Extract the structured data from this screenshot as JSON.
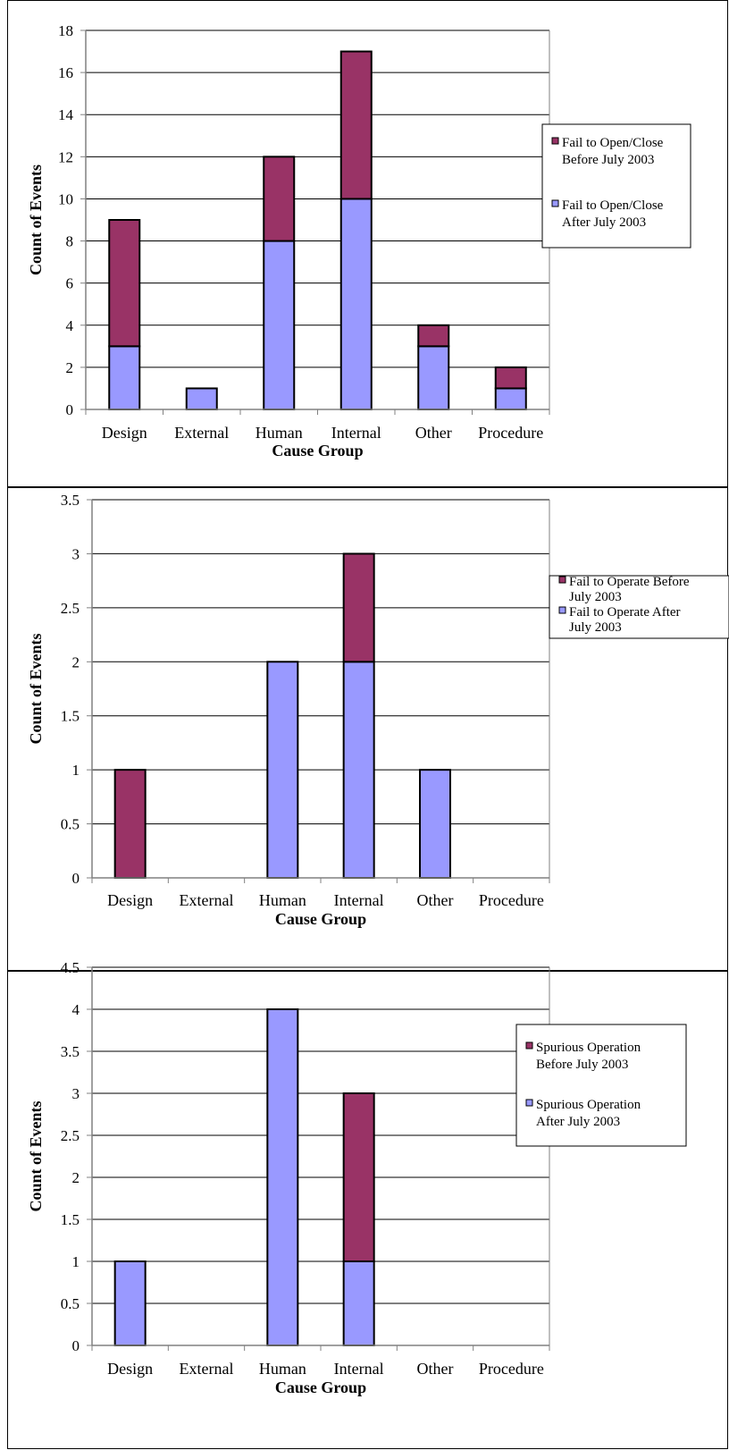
{
  "colors": {
    "before": "#993366",
    "after": "#9999ff",
    "axis": "#808080",
    "grid": "#000000"
  },
  "chart_data": [
    {
      "type": "bar",
      "stacked": true,
      "categories": [
        "Design",
        "External",
        "Human",
        "Internal",
        "Other",
        "Procedure"
      ],
      "series": [
        {
          "name": "Fail to Open/Close After July 2003",
          "color": "#9999ff",
          "values": [
            3,
            1,
            8,
            10,
            3,
            1
          ]
        },
        {
          "name": "Fail to Open/Close Before July 2003",
          "color": "#993366",
          "values": [
            6,
            0,
            4,
            7,
            1,
            1
          ]
        }
      ],
      "legend_lines": [
        [
          "Fail to Open/Close",
          "Before July 2003"
        ],
        [
          "Fail to Open/Close",
          "After July 2003"
        ]
      ],
      "xlabel": "Cause Group",
      "ylabel": "Count of Events",
      "ylim": [
        0,
        18
      ],
      "yticks": [
        "0",
        "2",
        "4",
        "6",
        "8",
        "10",
        "12",
        "14",
        "16",
        "18"
      ],
      "grid": true,
      "legend": "right"
    },
    {
      "type": "bar",
      "stacked": true,
      "categories": [
        "Design",
        "External",
        "Human",
        "Internal",
        "Other",
        "Procedure"
      ],
      "series": [
        {
          "name": "Fail to Operate After July 2003",
          "color": "#9999ff",
          "values": [
            0,
            0,
            2,
            2,
            1,
            0
          ]
        },
        {
          "name": "Fail to Operate Before July 2003",
          "color": "#993366",
          "values": [
            1,
            0,
            0,
            1,
            0,
            0
          ]
        }
      ],
      "legend_lines": [
        [
          "Fail to Operate Before",
          "July 2003"
        ],
        [
          "Fail to Operate After",
          "July 2003"
        ]
      ],
      "xlabel": "Cause Group",
      "ylabel": "Count of Events",
      "ylim": [
        0,
        3.5
      ],
      "yticks": [
        "0",
        "0.5",
        "1",
        "1.5",
        "2",
        "2.5",
        "3",
        "3.5"
      ],
      "grid": true,
      "legend": "right"
    },
    {
      "type": "bar",
      "stacked": true,
      "categories": [
        "Design",
        "External",
        "Human",
        "Internal",
        "Other",
        "Procedure"
      ],
      "series": [
        {
          "name": "Spurious Operation After July 2003",
          "color": "#9999ff",
          "values": [
            1,
            0,
            4,
            1,
            0,
            0
          ]
        },
        {
          "name": "Spurious Operation Before July 2003",
          "color": "#993366",
          "values": [
            0,
            0,
            0,
            2,
            0,
            0
          ]
        }
      ],
      "legend_lines": [
        [
          "Spurious Operation",
          "Before July 2003"
        ],
        [
          "Spurious Operation",
          "After July 2003"
        ]
      ],
      "xlabel": "Cause Group",
      "ylabel": "Count of Events",
      "ylim": [
        0,
        4.5
      ],
      "yticks": [
        "0",
        "0.5",
        "1",
        "1.5",
        "2",
        "2.5",
        "3",
        "3.5",
        "4",
        "4.5"
      ],
      "grid": true,
      "legend": "right"
    }
  ]
}
